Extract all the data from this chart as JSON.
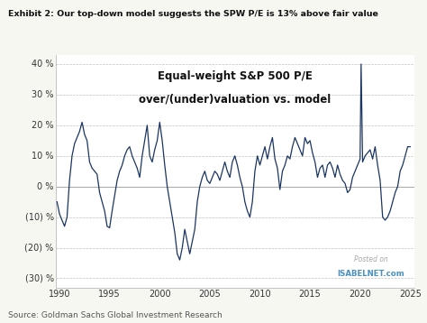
{
  "title": "Exhibit 2: Our top-down model suggests the SPW P/E is 13% above fair value",
  "chart_title_line1": "Equal-weight S&P 500 P/E",
  "chart_title_line2": "over/(under)valuation vs. model",
  "source": "Source: Goldman Sachs Global Investment Research",
  "watermark_line1": "Posted on",
  "watermark_line2": "ISABELNET.com",
  "ylim": [
    -33,
    43
  ],
  "yticks": [
    -30,
    -20,
    -10,
    0,
    10,
    20,
    30,
    40
  ],
  "ytick_labels": [
    "(30) %",
    "(20) %",
    "(10) %",
    "0 %",
    "10 %",
    "20 %",
    "30 %",
    "40 %"
  ],
  "xlim": [
    1989.6,
    2025.4
  ],
  "xticks": [
    1990,
    1995,
    2000,
    2005,
    2010,
    2015,
    2020,
    2025
  ],
  "line_color": "#1a3561",
  "bg_color": "#ffffff",
  "fig_bg_color": "#f7f7f2",
  "grid_color": "#c0c0c0",
  "border_color": "#bbbbbb",
  "zero_line_color": "#999999",
  "title_color": "#111111",
  "source_color": "#555555",
  "watermark1_color": "#aaaaaa",
  "watermark2_color": "#4a90c0",
  "data": {
    "years": [
      1989.75,
      1990.0,
      1990.25,
      1990.5,
      1990.75,
      1991.0,
      1991.25,
      1991.5,
      1991.75,
      1992.0,
      1992.25,
      1992.5,
      1992.75,
      1993.0,
      1993.25,
      1993.5,
      1993.75,
      1994.0,
      1994.25,
      1994.5,
      1994.75,
      1995.0,
      1995.25,
      1995.5,
      1995.75,
      1996.0,
      1996.25,
      1996.5,
      1996.75,
      1997.0,
      1997.25,
      1997.5,
      1997.75,
      1998.0,
      1998.25,
      1998.5,
      1998.75,
      1999.0,
      1999.25,
      1999.5,
      1999.75,
      2000.0,
      2000.25,
      2000.5,
      2000.75,
      2001.0,
      2001.25,
      2001.5,
      2001.75,
      2002.0,
      2002.25,
      2002.5,
      2002.75,
      2003.0,
      2003.25,
      2003.5,
      2003.75,
      2004.0,
      2004.25,
      2004.5,
      2004.75,
      2005.0,
      2005.25,
      2005.5,
      2005.75,
      2006.0,
      2006.25,
      2006.5,
      2006.75,
      2007.0,
      2007.25,
      2007.5,
      2007.75,
      2008.0,
      2008.25,
      2008.5,
      2008.75,
      2009.0,
      2009.25,
      2009.5,
      2009.75,
      2010.0,
      2010.25,
      2010.5,
      2010.75,
      2011.0,
      2011.25,
      2011.5,
      2011.75,
      2012.0,
      2012.25,
      2012.5,
      2012.75,
      2013.0,
      2013.25,
      2013.5,
      2013.75,
      2014.0,
      2014.25,
      2014.5,
      2014.75,
      2015.0,
      2015.25,
      2015.5,
      2015.75,
      2016.0,
      2016.25,
      2016.5,
      2016.75,
      2017.0,
      2017.25,
      2017.5,
      2017.75,
      2018.0,
      2018.25,
      2018.5,
      2018.75,
      2019.0,
      2019.25,
      2019.5,
      2019.75,
      2020.0,
      2020.1,
      2020.25,
      2020.5,
      2020.75,
      2021.0,
      2021.25,
      2021.5,
      2021.75,
      2022.0,
      2022.25,
      2022.5,
      2022.75,
      2023.0,
      2023.25,
      2023.5,
      2023.75,
      2024.0,
      2024.25,
      2024.5,
      2024.75,
      2025.0
    ],
    "values": [
      -5.0,
      -9.0,
      -11.0,
      -13.0,
      -10.0,
      2.0,
      10.0,
      14.0,
      16.0,
      18.0,
      21.0,
      17.0,
      15.0,
      8.0,
      6.0,
      5.0,
      4.0,
      -2.0,
      -5.0,
      -8.0,
      -13.0,
      -13.5,
      -8.0,
      -3.0,
      2.0,
      5.0,
      7.0,
      10.0,
      12.0,
      13.0,
      10.0,
      8.0,
      6.0,
      3.0,
      10.0,
      15.0,
      20.0,
      10.0,
      8.0,
      12.0,
      15.0,
      21.0,
      15.0,
      7.0,
      0.0,
      -5.0,
      -10.0,
      -15.0,
      -22.0,
      -24.0,
      -20.0,
      -14.0,
      -18.0,
      -22.0,
      -18.0,
      -14.0,
      -5.0,
      0.0,
      3.0,
      5.0,
      2.0,
      1.0,
      3.0,
      5.0,
      4.0,
      2.0,
      5.0,
      8.0,
      5.0,
      3.0,
      8.0,
      10.0,
      7.0,
      3.0,
      0.0,
      -5.0,
      -8.0,
      -10.0,
      -5.0,
      5.0,
      10.0,
      7.0,
      10.0,
      13.0,
      9.0,
      13.0,
      16.0,
      9.0,
      6.0,
      -1.0,
      5.0,
      7.0,
      10.0,
      9.0,
      13.0,
      16.0,
      14.0,
      12.0,
      10.0,
      16.0,
      14.0,
      15.0,
      11.0,
      8.0,
      3.0,
      6.0,
      7.0,
      3.0,
      7.0,
      8.0,
      6.0,
      3.0,
      7.0,
      4.0,
      2.0,
      1.0,
      -2.0,
      -1.0,
      3.0,
      5.0,
      7.0,
      9.0,
      40.0,
      8.0,
      10.0,
      11.0,
      12.0,
      9.0,
      13.0,
      7.0,
      2.0,
      -10.0,
      -11.0,
      -10.0,
      -8.0,
      -5.0,
      -2.0,
      0.0,
      5.0,
      7.0,
      10.0,
      13.0,
      13.0
    ]
  }
}
